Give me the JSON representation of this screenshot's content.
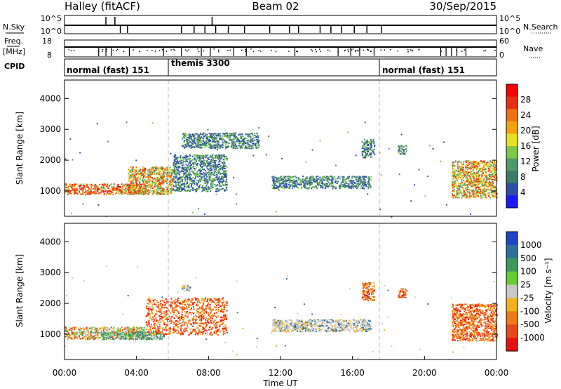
{
  "header": {
    "station": "Halley (fitACF)",
    "beam": "Beam 02",
    "date": "30/Sep/2015"
  },
  "strips": {
    "nsky_label": "N.Sky",
    "nsky_ticks": [
      "10^5",
      "10^0"
    ],
    "nsearch_label": "N.Search",
    "nsearch_ticks": [
      "10^5",
      "10^0"
    ],
    "freq_label": "Freq.",
    "freq_unit": "[MHz]",
    "freq_ticks": [
      "18",
      "8"
    ],
    "nave_label": "Nave",
    "nave_ticks": [
      "60",
      "0"
    ],
    "cpid_label": "CPID",
    "cpid_segments": [
      {
        "label": "normal (fast) 151",
        "start_hour": 0
      },
      {
        "label": "themis 3300",
        "start_hour": 6
      },
      {
        "label": "normal (fast) 151",
        "start_hour": 18
      }
    ]
  },
  "time_axis": {
    "ticks": [
      "00:00",
      "04:00",
      "08:00",
      "12:00",
      "16:00",
      "20:00",
      "00:00"
    ],
    "xlabel": "Time UT"
  },
  "chart_data": [
    {
      "type": "heatmap",
      "parameter": "Power",
      "ylabel": "Slant Range [km]",
      "yticks": [
        1000,
        2000,
        3000,
        4000
      ],
      "ylim": [
        180,
        4600
      ],
      "xlim_hours": [
        0,
        24
      ],
      "colorbar": {
        "label": "Power [dB]",
        "range": [
          0,
          32
        ],
        "ticks": [
          4,
          8,
          12,
          16,
          20,
          24,
          28
        ],
        "colors": [
          "#1a1aff",
          "#2b4ea6",
          "#3d7a6a",
          "#4f9a6a",
          "#7dc84a",
          "#e8e020",
          "#f3a210",
          "#f07010",
          "#e83010",
          "#ff0000"
        ]
      },
      "regions": [
        {
          "t": [
            0.0,
            4.5
          ],
          "range": [
            900,
            1250
          ],
          "level": "high",
          "description_shown_by_color": "red/orange echoes"
        },
        {
          "t": [
            3.5,
            6.0
          ],
          "range": [
            900,
            1800
          ],
          "level": "medium"
        },
        {
          "t": [
            6.0,
            9.0
          ],
          "range": [
            1000,
            2200
          ],
          "level": "low"
        },
        {
          "t": [
            6.5,
            10.8
          ],
          "range": [
            2400,
            2900
          ],
          "level": "low"
        },
        {
          "t": [
            11.5,
            17.0
          ],
          "range": [
            1100,
            1500
          ],
          "level": "low"
        },
        {
          "t": [
            16.5,
            17.2
          ],
          "range": [
            2100,
            2700
          ],
          "level": "low"
        },
        {
          "t": [
            18.5,
            19.0
          ],
          "range": [
            2200,
            2500
          ],
          "level": "low"
        },
        {
          "t": [
            21.5,
            24.0
          ],
          "range": [
            800,
            2000
          ],
          "level": "medium"
        }
      ]
    },
    {
      "type": "heatmap",
      "parameter": "Velocity",
      "ylabel": "Slant Range [km]",
      "yticks": [
        1000,
        2000,
        3000,
        4000
      ],
      "ylim": [
        180,
        4600
      ],
      "xlim_hours": [
        0,
        24
      ],
      "colorbar": {
        "label": "Velocity [m s⁻¹]",
        "tick_labels": [
          "1000",
          "500",
          "100",
          "25",
          "-25",
          "-100",
          "-500",
          "-1000"
        ],
        "colors": [
          "#2244cc",
          "#2f6e9a",
          "#3f9a5a",
          "#66cc33",
          "#c8c8c8",
          "#f2b21c",
          "#f07a1a",
          "#e84818",
          "#e81010"
        ]
      },
      "regions": [
        {
          "t": [
            0.0,
            4.5
          ],
          "range": [
            850,
            1250
          ],
          "level": "mixed"
        },
        {
          "t": [
            2.0,
            5.5
          ],
          "range": [
            850,
            1100
          ],
          "level": "positive"
        },
        {
          "t": [
            4.5,
            9.0
          ],
          "range": [
            1000,
            2200
          ],
          "level": "negative"
        },
        {
          "t": [
            6.5,
            7.0
          ],
          "range": [
            2400,
            2600
          ],
          "level": "near-zero"
        },
        {
          "t": [
            11.5,
            17.0
          ],
          "range": [
            1100,
            1500
          ],
          "level": "near-zero"
        },
        {
          "t": [
            16.5,
            17.2
          ],
          "range": [
            2100,
            2700
          ],
          "level": "negative"
        },
        {
          "t": [
            18.5,
            19.0
          ],
          "range": [
            2200,
            2500
          ],
          "level": "negative"
        },
        {
          "t": [
            21.5,
            24.0
          ],
          "range": [
            800,
            2000
          ],
          "level": "negative"
        }
      ]
    }
  ]
}
